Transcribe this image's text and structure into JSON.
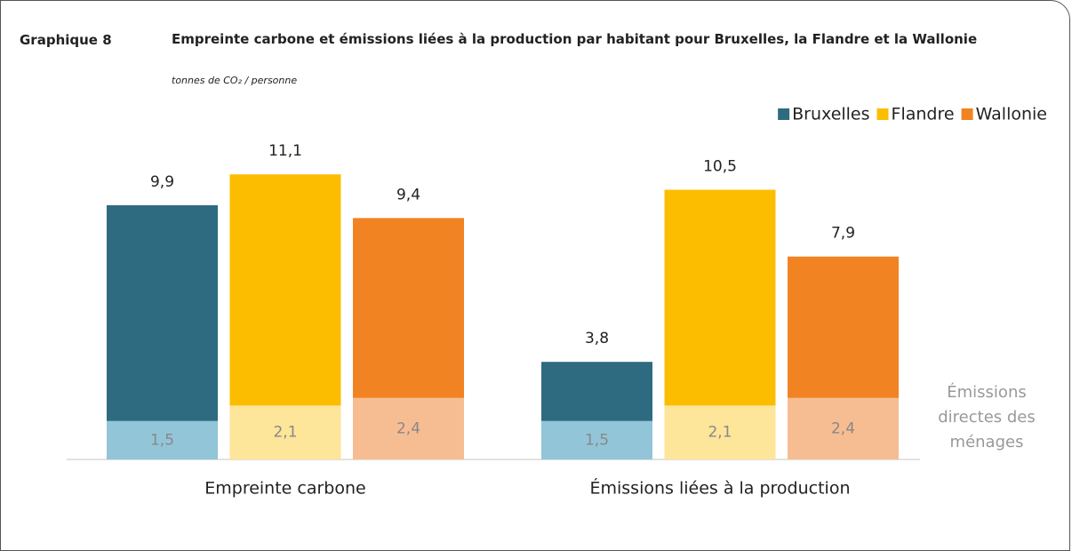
{
  "chart_data": {
    "type": "bar",
    "label": "Graphique 8",
    "title": "Empreinte carbone et émissions liées à la production par habitant pour Bruxelles, la Flandre et la Wallonie",
    "subtitle": "tonnes de CO₂ / personne",
    "categories": [
      "Empreinte carbone",
      "Émissions liées à la production"
    ],
    "series": [
      {
        "name": "Bruxelles",
        "color": "#2e6b80",
        "direct_color": "#92c5d8",
        "values": [
          9.9,
          3.8
        ],
        "value_labels": [
          "9,9",
          "3,8"
        ],
        "direct": [
          1.5,
          1.5
        ],
        "direct_labels": [
          "1,5",
          "1,5"
        ]
      },
      {
        "name": "Flandre",
        "color": "#fcbd00",
        "direct_color": "#fde59a",
        "values": [
          11.1,
          10.5
        ],
        "value_labels": [
          "11,1",
          "10,5"
        ],
        "direct": [
          2.1,
          2.1
        ],
        "direct_labels": [
          "2,1",
          "2,1"
        ]
      },
      {
        "name": "Wallonie",
        "color": "#f28322",
        "direct_color": "#f7bd92",
        "values": [
          9.4,
          7.9
        ],
        "value_labels": [
          "9,4",
          "7,9"
        ],
        "direct": [
          2.4,
          2.4
        ],
        "direct_labels": [
          "2,4",
          "2,4"
        ]
      }
    ],
    "annotation": [
      "Émissions",
      "directes des",
      "ménages"
    ],
    "legend": "top-right"
  }
}
